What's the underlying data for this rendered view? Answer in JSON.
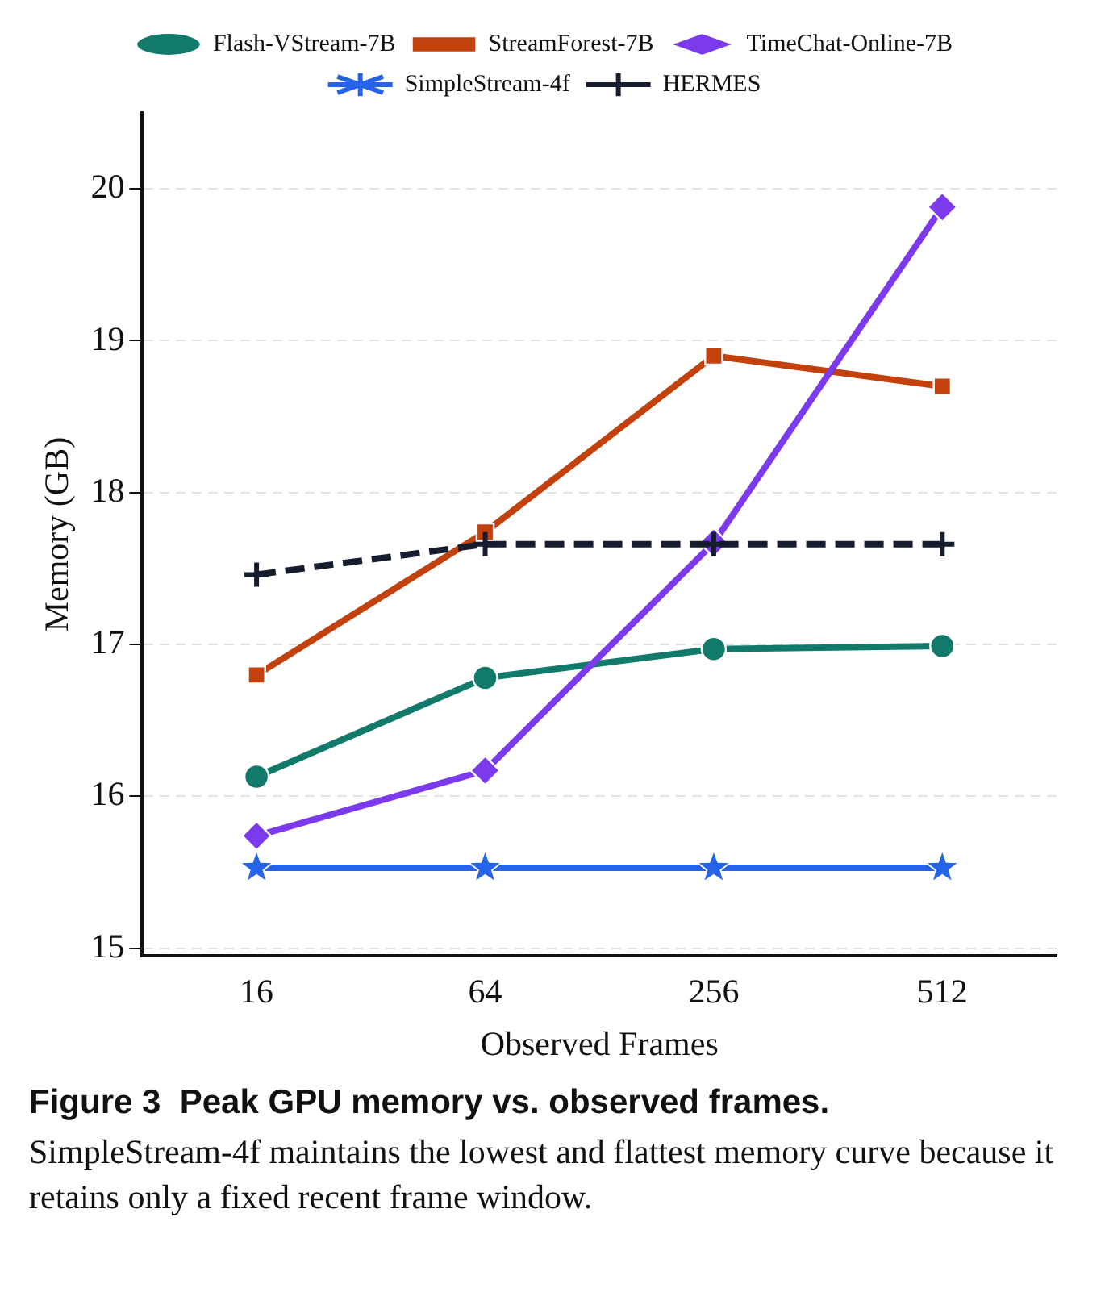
{
  "chart_data": {
    "type": "line",
    "title": "Figure 3  Peak GPU memory vs. observed frames.",
    "xlabel": "Observed Frames",
    "ylabel": "Memory (GB)",
    "categories": [
      "16",
      "64",
      "256",
      "512"
    ],
    "series": [
      {
        "name": "Flash-VStream-7B",
        "color": "#127a6b",
        "marker": "circle",
        "values": [
          16.13,
          16.78,
          16.97,
          16.99
        ]
      },
      {
        "name": "StreamForest-7B",
        "color": "#c2410c",
        "marker": "square",
        "values": [
          16.8,
          17.74,
          18.9,
          18.7
        ]
      },
      {
        "name": "TimeChat-Online-7B",
        "color": "#7c3aed",
        "marker": "diamond",
        "values": [
          15.74,
          16.17,
          17.67,
          19.88
        ]
      },
      {
        "name": "SimpleStream-4f",
        "color": "#2563eb",
        "marker": "star",
        "values": [
          15.53,
          15.53,
          15.53,
          15.53
        ]
      },
      {
        "name": "HERMES",
        "color": "#161d2e",
        "marker": "cross",
        "line_style": "dashed",
        "values": [
          17.46,
          17.66,
          17.66,
          17.66
        ]
      }
    ],
    "ylim": [
      14.95,
      20.5
    ],
    "yticks": [
      15,
      16,
      17,
      18,
      19,
      20
    ],
    "grid": "y",
    "legend": "top",
    "annotations": [
      "SimpleStream-4f maintains the lowest and flattest memory curve because it retains only a fixed recent frame window."
    ]
  }
}
